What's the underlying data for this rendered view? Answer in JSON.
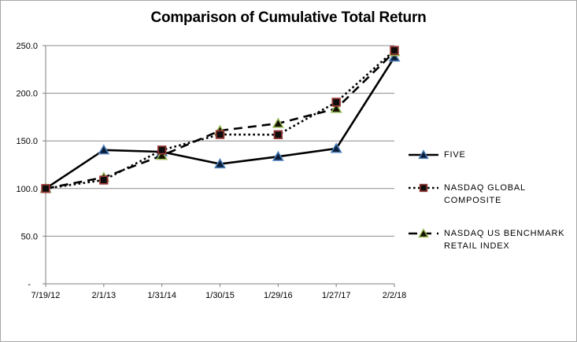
{
  "chart_data": {
    "type": "line",
    "title": "Comparison of Cumulative Total Return",
    "categories": [
      "7/19/12",
      "2/1/13",
      "1/31/14",
      "1/30/15",
      "1/29/16",
      "1/27/17",
      "2/2/18"
    ],
    "series": [
      {
        "name": "FIVE",
        "values": [
          100.0,
          140.4,
          138.5,
          125.8,
          133.5,
          142.0,
          237.8
        ],
        "line_style": "solid",
        "marker": "triangle",
        "marker_border": "#4F81BD",
        "marker_fill": "#0b1f3a",
        "line_color": "#000000"
      },
      {
        "name": "NASDAQ GLOBAL COMPOSITE",
        "values": [
          100.0,
          108.9,
          140.4,
          156.7,
          156.5,
          190.6,
          245.0
        ],
        "line_style": "dotted",
        "marker": "square",
        "marker_border": "#953735",
        "marker_fill": "#0d0d0d",
        "line_color": "#000000"
      },
      {
        "name": "NASDAQ US BENCHMARK RETAIL INDEX",
        "values": [
          100.0,
          111.7,
          134.6,
          160.8,
          168.3,
          183.9,
          243.4
        ],
        "line_style": "dashed",
        "marker": "triangle",
        "marker_border": "#9BBB59",
        "marker_fill": "#131300",
        "line_color": "#000000"
      }
    ],
    "ylim": [
      0,
      250
    ],
    "ytick_step": 50,
    "ytick_labels": [
      "-",
      "50.0",
      "100.0",
      "150.0",
      "200.0",
      "250.0"
    ],
    "grid": true,
    "gridline_color": "#8c8c8c",
    "axis_color": "#7f7f7f",
    "tick_label_color": "#000000",
    "legend_position": "right"
  }
}
